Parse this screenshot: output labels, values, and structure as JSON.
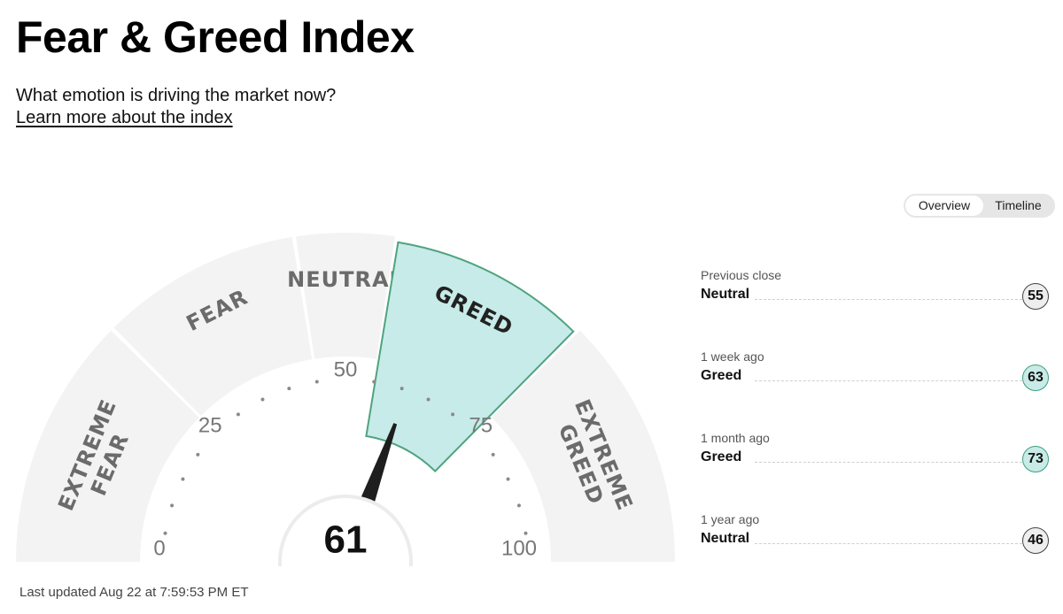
{
  "header": {
    "title": "Fear & Greed Index",
    "subtitle": "What emotion is driving the market now?",
    "learn_more": "Learn more about the index"
  },
  "tabs": [
    {
      "label": "Overview",
      "active": true
    },
    {
      "label": "Timeline",
      "active": false
    }
  ],
  "gauge": {
    "value": 61,
    "value_label": "61",
    "current_zone": "GREED",
    "zones": [
      {
        "line1": "EXTREME",
        "line2": "FEAR",
        "from": 0,
        "to": 25
      },
      {
        "line1": "FEAR",
        "line2": "",
        "from": 25,
        "to": 45
      },
      {
        "line1": "NEUTRAL",
        "line2": "",
        "from": 45,
        "to": 55
      },
      {
        "line1": "GREED",
        "line2": "",
        "from": 55,
        "to": 75
      },
      {
        "line1": "EXTREME",
        "line2": "GREED",
        "from": 75,
        "to": 100
      }
    ],
    "ticks": [
      "0",
      "25",
      "50",
      "75",
      "100"
    ],
    "colors": {
      "zone_bg": "#f3f3f3",
      "active_fill": "#c7ebe8",
      "active_stroke": "#4fa37e",
      "needle": "#1e1e1e",
      "zone_text": "#6b6b6b"
    }
  },
  "history": [
    {
      "label": "Previous close",
      "rating": "Neutral",
      "value": "55",
      "zone": "neutral"
    },
    {
      "label": "1 week ago",
      "rating": "Greed",
      "value": "63",
      "zone": "greed"
    },
    {
      "label": "1 month ago",
      "rating": "Greed",
      "value": "73",
      "zone": "greed"
    },
    {
      "label": "1 year ago",
      "rating": "Neutral",
      "value": "46",
      "zone": "neutral"
    }
  ],
  "footer": {
    "last_updated": "Last updated Aug 22 at 7:59:53 PM ET"
  }
}
